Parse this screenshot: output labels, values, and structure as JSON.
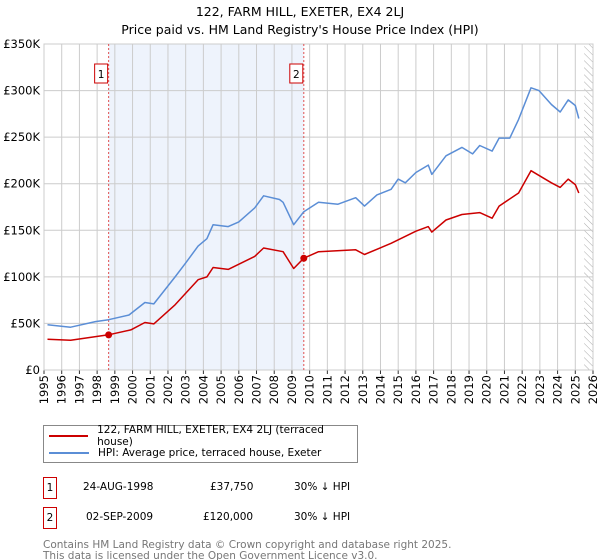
{
  "title_line1": "122, FARM HILL, EXETER, EX4 2LJ",
  "title_line2": "Price paid vs. HM Land Registry's House Price Index (HPI)",
  "legend": [
    {
      "label": "122, FARM HILL, EXETER, EX4 2LJ (terraced house)",
      "color": "#cc0000"
    },
    {
      "label": "HPI: Average price, terraced house, Exeter",
      "color": "#5b8ed6"
    }
  ],
  "transactions": [
    {
      "num": "1",
      "date": "24-AUG-1998",
      "price": "£37,750",
      "hpi": "30% ↓ HPI"
    },
    {
      "num": "2",
      "date": "02-SEP-2009",
      "price": "£120,000",
      "hpi": "30% ↓ HPI"
    }
  ],
  "footer_line1": "Contains HM Land Registry data © Crown copyright and database right 2025.",
  "footer_line2": "This data is licensed under the Open Government Licence v3.0.",
  "chart_data": {
    "type": "line",
    "title": "122, FARM HILL, EXETER, EX4 2LJ — Price paid vs. HPI",
    "xlim": [
      1995,
      2026
    ],
    "ylim": [
      0,
      350000
    ],
    "x_ticks": [
      "1995",
      "1996",
      "1997",
      "1998",
      "1999",
      "2000",
      "2001",
      "2002",
      "2003",
      "2004",
      "2005",
      "2006",
      "2007",
      "2008",
      "2009",
      "2010",
      "2011",
      "2012",
      "2013",
      "2014",
      "2015",
      "2016",
      "2017",
      "2018",
      "2019",
      "2020",
      "2021",
      "2022",
      "2023",
      "2024",
      "2025",
      "2026"
    ],
    "y_ticks": [
      {
        "v": 0,
        "label": "£0"
      },
      {
        "v": 50000,
        "label": "£50K"
      },
      {
        "v": 100000,
        "label": "£100K"
      },
      {
        "v": 150000,
        "label": "£150K"
      },
      {
        "v": 200000,
        "label": "£200K"
      },
      {
        "v": 250000,
        "label": "£250K"
      },
      {
        "v": 300000,
        "label": "£300K"
      },
      {
        "v": 350000,
        "label": "£350K"
      }
    ],
    "grid": true,
    "shaded_range": [
      1998.65,
      2009.67
    ],
    "forecast_hatch_from": 2025.5,
    "markers": [
      {
        "label": "1",
        "x": 1998.65,
        "y": 37750
      },
      {
        "label": "2",
        "x": 2009.67,
        "y": 120000
      }
    ],
    "series": [
      {
        "name": "122, FARM HILL, EXETER, EX4 2LJ (terraced house)",
        "color": "#cc0000",
        "points": [
          [
            1995.2,
            33000
          ],
          [
            1996.5,
            32000
          ],
          [
            1998.65,
            37750
          ],
          [
            1999.9,
            43000
          ],
          [
            2000.7,
            51000
          ],
          [
            2001.2,
            49500
          ],
          [
            2002.4,
            70000
          ],
          [
            2003.7,
            97000
          ],
          [
            2004.2,
            100000
          ],
          [
            2004.55,
            110000
          ],
          [
            2005.4,
            108000
          ],
          [
            2006.9,
            122000
          ],
          [
            2007.4,
            131000
          ],
          [
            2008.5,
            127000
          ],
          [
            2009.1,
            109000
          ],
          [
            2009.67,
            120000
          ],
          [
            2010.5,
            127000
          ],
          [
            2012.6,
            129000
          ],
          [
            2013.1,
            124000
          ],
          [
            2014.6,
            136000
          ],
          [
            2016.0,
            149000
          ],
          [
            2016.7,
            154000
          ],
          [
            2016.9,
            148000
          ],
          [
            2017.7,
            161000
          ],
          [
            2018.6,
            167000
          ],
          [
            2019.6,
            169000
          ],
          [
            2020.3,
            163000
          ],
          [
            2020.7,
            176000
          ],
          [
            2021.8,
            190000
          ],
          [
            2022.5,
            214000
          ],
          [
            2023.65,
            201000
          ],
          [
            2024.15,
            196000
          ],
          [
            2024.6,
            205000
          ],
          [
            2025.0,
            199000
          ],
          [
            2025.2,
            190000
          ]
        ]
      },
      {
        "name": "HPI: Average price, terraced house, Exeter",
        "color": "#5b8ed6",
        "points": [
          [
            1995.2,
            48500
          ],
          [
            1996.5,
            46000
          ],
          [
            1997.9,
            52000
          ],
          [
            1998.65,
            54000
          ],
          [
            1999.8,
            59000
          ],
          [
            2000.7,
            72500
          ],
          [
            2001.2,
            71000
          ],
          [
            2002.4,
            100000
          ],
          [
            2003.0,
            115000
          ],
          [
            2003.7,
            133000
          ],
          [
            2004.2,
            141000
          ],
          [
            2004.55,
            156000
          ],
          [
            2005.4,
            154000
          ],
          [
            2006.0,
            159000
          ],
          [
            2006.9,
            174000
          ],
          [
            2007.4,
            187000
          ],
          [
            2008.3,
            183000
          ],
          [
            2008.5,
            180000
          ],
          [
            2009.1,
            156000
          ],
          [
            2009.67,
            170000
          ],
          [
            2010.5,
            180000
          ],
          [
            2011.6,
            178000
          ],
          [
            2012.6,
            185000
          ],
          [
            2013.1,
            176000
          ],
          [
            2013.8,
            188000
          ],
          [
            2014.6,
            194000
          ],
          [
            2015.0,
            205000
          ],
          [
            2015.4,
            201000
          ],
          [
            2016.0,
            212000
          ],
          [
            2016.7,
            220000
          ],
          [
            2016.9,
            210000
          ],
          [
            2017.7,
            230000
          ],
          [
            2018.6,
            239000
          ],
          [
            2019.2,
            232000
          ],
          [
            2019.6,
            241000
          ],
          [
            2020.3,
            235000
          ],
          [
            2020.7,
            249000
          ],
          [
            2021.3,
            249000
          ],
          [
            2021.8,
            269000
          ],
          [
            2022.5,
            303000
          ],
          [
            2022.95,
            300000
          ],
          [
            2023.65,
            285000
          ],
          [
            2024.15,
            277000
          ],
          [
            2024.6,
            290000
          ],
          [
            2025.0,
            284000
          ],
          [
            2025.2,
            270000
          ]
        ]
      }
    ]
  }
}
